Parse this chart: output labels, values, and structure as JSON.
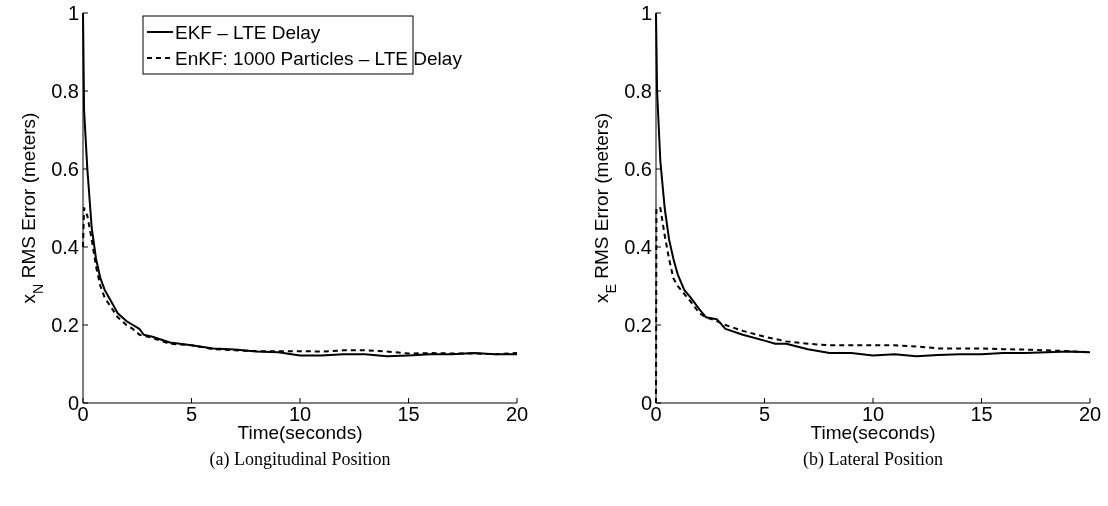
{
  "chart_data": [
    {
      "type": "line",
      "title": "(a)  Longitudinal Position",
      "xlabel": "Time(seconds)",
      "ylabel": "x$_{N}$ RMS Error (meters)",
      "xlim": [
        0,
        20
      ],
      "ylim": [
        0,
        1
      ],
      "xticks": [
        0,
        5,
        10,
        15,
        20
      ],
      "yticks": [
        0,
        0.2,
        0.4,
        0.6,
        0.8,
        1
      ],
      "grid": false,
      "legend": "top",
      "series": [
        {
          "name": "EKF – LTE Delay",
          "color": "#000000",
          "line_style": "solid",
          "x": [
            0,
            0.05,
            0.2,
            0.4,
            0.6,
            0.8,
            1,
            1.3,
            1.6,
            2,
            2.3,
            2.6,
            2.8,
            3.2,
            4,
            5,
            6,
            7,
            8,
            9,
            10,
            11,
            12,
            13,
            14,
            15,
            16,
            17,
            18,
            19,
            20
          ],
          "values": [
            1.0,
            0.75,
            0.6,
            0.45,
            0.37,
            0.32,
            0.29,
            0.26,
            0.23,
            0.21,
            0.2,
            0.19,
            0.175,
            0.17,
            0.155,
            0.148,
            0.14,
            0.137,
            0.132,
            0.13,
            0.122,
            0.122,
            0.125,
            0.125,
            0.12,
            0.122,
            0.125,
            0.125,
            0.128,
            0.125,
            0.125
          ]
        },
        {
          "name": "EnKF: 1000 Particles – LTE Delay",
          "color": "#000000",
          "line_style": "dashed",
          "x": [
            0,
            0.05,
            0.2,
            0.4,
            0.6,
            0.8,
            1,
            1.3,
            1.6,
            2,
            2.3,
            2.6,
            3,
            4,
            5,
            6,
            7,
            8,
            9,
            10,
            11,
            12,
            13,
            14,
            15,
            16,
            17,
            18,
            19,
            20
          ],
          "values": [
            0.4,
            0.5,
            0.48,
            0.42,
            0.35,
            0.3,
            0.27,
            0.245,
            0.22,
            0.2,
            0.19,
            0.175,
            0.17,
            0.152,
            0.148,
            0.138,
            0.135,
            0.133,
            0.133,
            0.133,
            0.132,
            0.135,
            0.135,
            0.132,
            0.127,
            0.128,
            0.127,
            0.127,
            0.125,
            0.128
          ]
        }
      ]
    },
    {
      "type": "line",
      "title": "(b)  Lateral Position",
      "xlabel": "Time(seconds)",
      "ylabel": "x$_{E}$ RMS Error (meters)",
      "xlim": [
        0,
        20
      ],
      "ylim": [
        0,
        1
      ],
      "xticks": [
        0,
        5,
        10,
        15,
        20
      ],
      "yticks": [
        0,
        0.2,
        0.4,
        0.6,
        0.8,
        1
      ],
      "grid": false,
      "legend": false,
      "series": [
        {
          "color": "#000000",
          "line_style": "solid",
          "x": [
            0,
            0.05,
            0.2,
            0.4,
            0.6,
            0.8,
            1,
            1.3,
            1.6,
            2,
            2.3,
            2.8,
            3.2,
            4,
            5,
            5.5,
            6,
            7,
            8,
            9,
            10,
            11,
            12,
            13,
            14,
            15,
            16,
            17,
            18,
            19,
            20
          ],
          "values": [
            1.0,
            0.8,
            0.62,
            0.5,
            0.42,
            0.37,
            0.33,
            0.29,
            0.27,
            0.24,
            0.22,
            0.215,
            0.19,
            0.175,
            0.16,
            0.152,
            0.152,
            0.138,
            0.128,
            0.128,
            0.122,
            0.125,
            0.12,
            0.123,
            0.125,
            0.125,
            0.128,
            0.128,
            0.13,
            0.132,
            0.13
          ]
        },
        {
          "color": "#000000",
          "line_style": "dashed",
          "x": [
            0,
            0.02,
            0.2,
            0.4,
            0.6,
            0.8,
            1,
            1.3,
            1.6,
            2,
            2.3,
            2.8,
            3.2,
            4,
            5,
            6,
            7,
            8,
            9,
            10,
            11,
            12,
            13,
            14,
            15,
            16,
            17,
            18,
            19,
            20
          ],
          "values": [
            0,
            0.5,
            0.5,
            0.43,
            0.37,
            0.32,
            0.3,
            0.28,
            0.26,
            0.23,
            0.22,
            0.21,
            0.2,
            0.185,
            0.17,
            0.158,
            0.152,
            0.148,
            0.148,
            0.148,
            0.148,
            0.145,
            0.14,
            0.14,
            0.14,
            0.138,
            0.137,
            0.135,
            0.133,
            0.13
          ]
        }
      ]
    }
  ]
}
